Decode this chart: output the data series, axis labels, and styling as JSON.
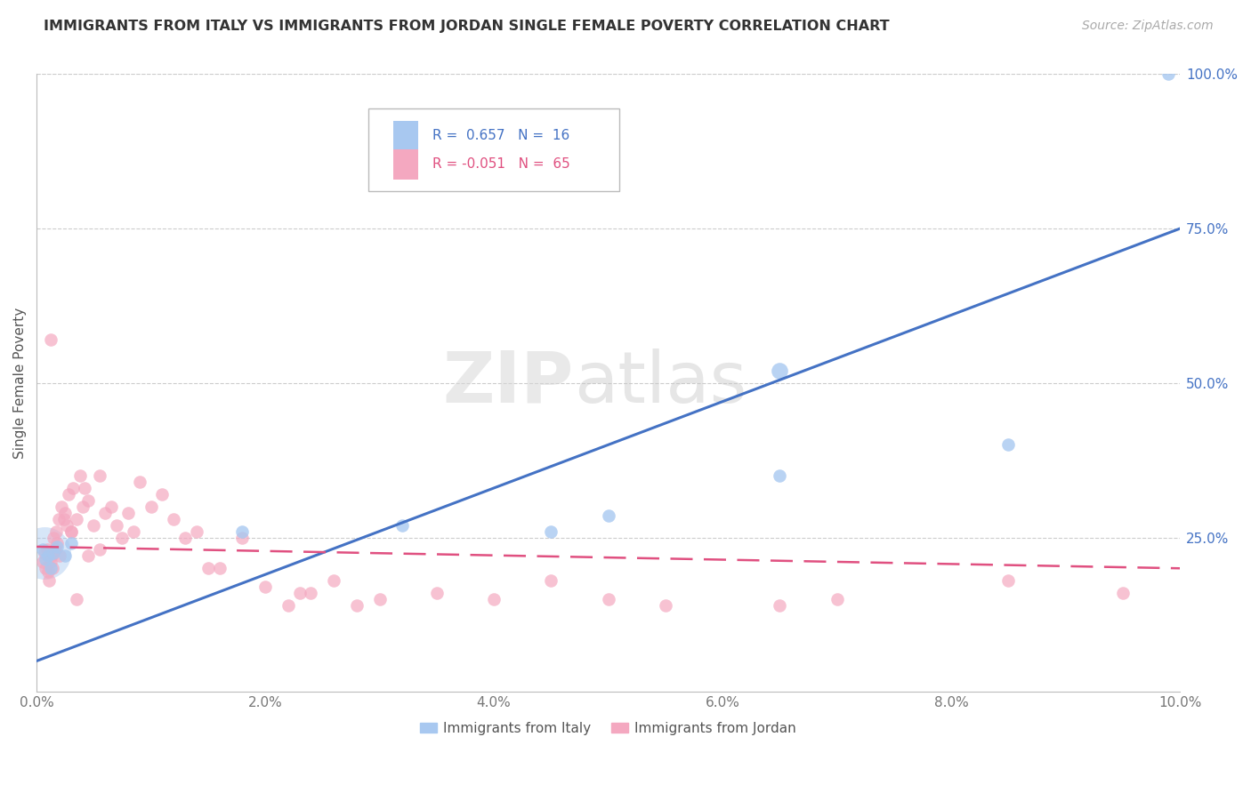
{
  "title": "IMMIGRANTS FROM ITALY VS IMMIGRANTS FROM JORDAN SINGLE FEMALE POVERTY CORRELATION CHART",
  "source": "Source: ZipAtlas.com",
  "ylabel": "Single Female Poverty",
  "legend_italy": "Immigrants from Italy",
  "legend_jordan": "Immigrants from Jordan",
  "italy_R": "0.657",
  "italy_N": "16",
  "jordan_R": "-0.051",
  "jordan_N": "65",
  "italy_color": "#A8C8F0",
  "jordan_color": "#F4A8C0",
  "italy_line_color": "#4472C4",
  "jordan_line_color": "#E05080",
  "xlim": [
    0.0,
    10.0
  ],
  "ylim": [
    0.0,
    100.0
  ],
  "right_yticks": [
    25.0,
    50.0,
    75.0,
    100.0
  ],
  "watermark_zip": "ZIP",
  "watermark_atlas": "atlas",
  "background_color": "#ffffff",
  "grid_color": "#cccccc",
  "italy_x": [
    0.05,
    0.08,
    0.1,
    0.12,
    0.15,
    0.18,
    0.25,
    0.3,
    1.8,
    3.2,
    4.5,
    5.0,
    6.5,
    8.5,
    9.9
  ],
  "italy_y": [
    23.0,
    21.5,
    22.0,
    20.0,
    22.5,
    23.5,
    22.0,
    24.0,
    26.0,
    27.0,
    26.0,
    28.5,
    35.0,
    40.0,
    100.0
  ],
  "italy_large_x": [
    6.5
  ],
  "italy_large_y": [
    52.0
  ],
  "jordan_x": [
    0.05,
    0.07,
    0.08,
    0.09,
    0.1,
    0.11,
    0.12,
    0.13,
    0.14,
    0.15,
    0.16,
    0.17,
    0.18,
    0.19,
    0.2,
    0.22,
    0.24,
    0.26,
    0.28,
    0.3,
    0.32,
    0.35,
    0.38,
    0.4,
    0.42,
    0.45,
    0.5,
    0.55,
    0.6,
    0.65,
    0.7,
    0.75,
    0.8,
    0.85,
    0.9,
    1.0,
    1.1,
    1.2,
    1.4,
    1.5,
    1.8,
    2.0,
    2.2,
    2.4,
    2.6,
    2.8,
    3.0,
    3.5,
    4.0,
    4.5,
    5.0,
    5.5,
    6.5,
    7.0,
    8.5,
    9.5,
    1.3,
    1.6,
    0.3,
    0.25,
    0.45,
    2.3,
    0.55,
    0.35,
    0.12
  ],
  "jordan_y": [
    21.0,
    22.5,
    20.0,
    23.0,
    19.5,
    18.0,
    21.0,
    22.0,
    20.0,
    25.0,
    23.0,
    26.0,
    24.0,
    28.0,
    22.0,
    30.0,
    28.0,
    27.0,
    32.0,
    26.0,
    33.0,
    28.0,
    35.0,
    30.0,
    33.0,
    31.0,
    27.0,
    35.0,
    29.0,
    30.0,
    27.0,
    25.0,
    29.0,
    26.0,
    34.0,
    30.0,
    32.0,
    28.0,
    26.0,
    20.0,
    25.0,
    17.0,
    14.0,
    16.0,
    18.0,
    14.0,
    15.0,
    16.0,
    15.0,
    18.0,
    15.0,
    14.0,
    14.0,
    15.0,
    18.0,
    16.0,
    25.0,
    20.0,
    26.0,
    29.0,
    22.0,
    16.0,
    23.0,
    15.0,
    57.0
  ],
  "italy_line_x0": 0.0,
  "italy_line_y0": 5.0,
  "italy_line_x1": 10.0,
  "italy_line_y1": 75.0,
  "jordan_line_x0": 0.0,
  "jordan_line_y0": 23.5,
  "jordan_line_x1": 10.0,
  "jordan_line_y1": 20.0
}
